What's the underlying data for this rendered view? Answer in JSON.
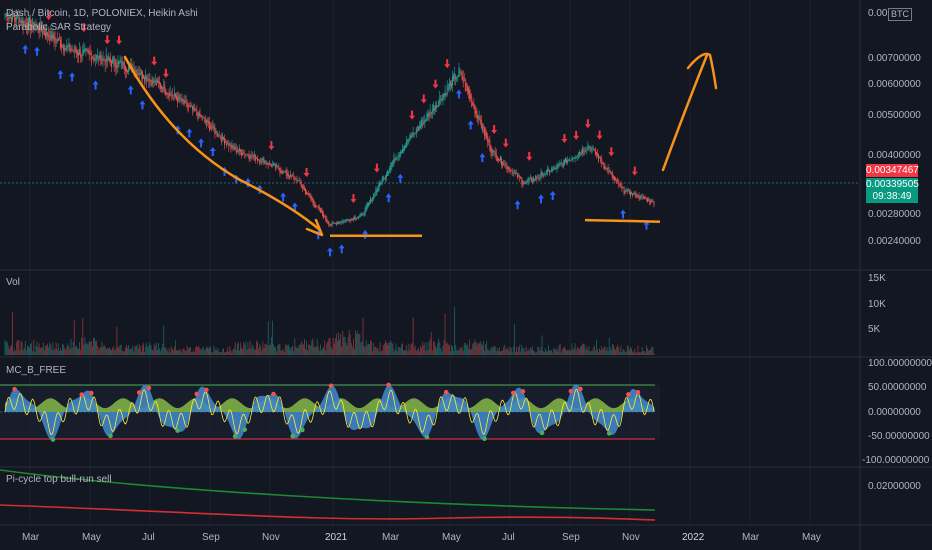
{
  "header": {
    "title": "Dash / Bitcoin, 1D, POLONIEX, Heikin Ashi",
    "strategy": "Parabolic SAR Strategy",
    "currency": "BTC"
  },
  "price_axis": {
    "ticks": [
      "0.00",
      "0.00700000",
      "0.00600000",
      "0.00500000",
      "0.00400000",
      "0.00280000",
      "0.00240000"
    ]
  },
  "price_labels": {
    "current": "0.00347467",
    "close": "0.00339505",
    "countdown": "09:38:49",
    "current_color": "#f23645",
    "close_color": "#089981"
  },
  "volume_panel": {
    "title": "Vol",
    "ticks": [
      "15K",
      "10K",
      "5K"
    ]
  },
  "mc_panel": {
    "title": "MC_B_FREE",
    "ticks": [
      "100.00000000",
      "50.00000000",
      "0.00000000",
      "-50.00000000",
      "-100.00000000"
    ]
  },
  "pi_panel": {
    "title": "Pi-cycle top bull-run sell",
    "ticks": [
      "0.02000000"
    ]
  },
  "time_axis": {
    "labels": [
      "Mar",
      "May",
      "Jul",
      "Sep",
      "Nov",
      "2021",
      "Mar",
      "May",
      "Jul",
      "Sep",
      "Nov",
      "2022",
      "Mar",
      "May"
    ]
  },
  "colors": {
    "background": "#131722",
    "up": "#26a69a",
    "down": "#ef5350",
    "annotation": "#f7931a",
    "buy_arrow": "#2962ff",
    "sell_arrow": "#f23645",
    "mc_blue": "#3d85c6",
    "mc_green": "#8bc34a",
    "mc_yellow": "#ffeb3b",
    "pi_green": "#1b8a2e",
    "pi_red": "#d32f2f"
  },
  "chart_data": {
    "type": "candlestick",
    "title": "Dash / Bitcoin, 1D, POLONIEX, Heikin Ashi",
    "x": [
      "2020-03",
      "2020-04",
      "2020-05",
      "2020-06",
      "2020-07",
      "2020-08",
      "2020-09",
      "2020-10",
      "2020-11",
      "2020-12",
      "2021-01",
      "2021-02",
      "2021-03",
      "2021-04",
      "2021-05",
      "2021-06",
      "2021-07",
      "2021-08",
      "2021-09",
      "2021-10",
      "2021-11"
    ],
    "close": [
      0.0093,
      0.0089,
      0.0082,
      0.0079,
      0.0076,
      0.0069,
      0.0061,
      0.0051,
      0.0047,
      0.0041,
      0.0027,
      0.003,
      0.0048,
      0.0061,
      0.0075,
      0.005,
      0.004,
      0.0045,
      0.0052,
      0.0038,
      0.0034
    ],
    "ylim": [
      0.0021,
      0.008
    ],
    "series": [
      {
        "name": "Vol",
        "values": [
          2200,
          1800,
          2600,
          1500,
          1900,
          1400,
          1300,
          2100,
          1800,
          2500,
          3600,
          2200,
          1900,
          2400,
          2300,
          1600,
          1300,
          1700,
          1600,
          1400,
          1200
        ]
      },
      {
        "name": "MC_B_FREE",
        "values": [
          30,
          10,
          -35,
          5,
          40,
          -30,
          20,
          -40,
          45,
          -20,
          50,
          -55,
          60,
          -30,
          70,
          -40,
          25,
          -35,
          60,
          -45,
          35
        ]
      }
    ],
    "annotations": [
      {
        "label": "down-trend arrow",
        "from": "2020-05",
        "to": "2021-01"
      },
      {
        "label": "support line",
        "value": 0.00236
      },
      {
        "label": "support line",
        "value": 0.00285
      },
      {
        "label": "projected breakout arrow",
        "from": "2021-11",
        "to": "2022-01"
      }
    ]
  }
}
